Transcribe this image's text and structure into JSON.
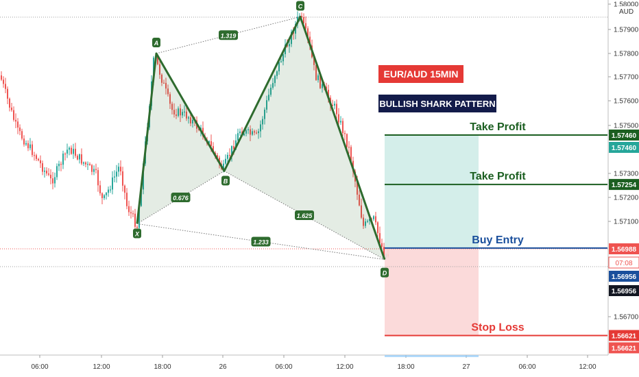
{
  "chart_data": {
    "type": "candlestick",
    "currency_label": "AUD",
    "symbol_label": "EUR/AUD   15MIN",
    "pattern_label": "BULLISH SHARK PATTERN",
    "y_ticks": [
      "1.58000",
      "1.57900",
      "1.57800",
      "1.57700",
      "1.57600",
      "1.57500",
      "1.57300",
      "1.57200",
      "1.57100",
      "1.56700"
    ],
    "y_tick_values": [
      1.58,
      1.579,
      1.578,
      1.577,
      1.576,
      1.575,
      1.573,
      1.572,
      1.571,
      1.567
    ],
    "x_ticks": [
      "06:00",
      "12:00",
      "18:00",
      "26",
      "06:00",
      "12:00",
      "18:00",
      "27",
      "06:00",
      "12:00"
    ],
    "pattern_points": [
      {
        "label": "X",
        "price": 1.5709
      },
      {
        "label": "A",
        "price": 1.578
      },
      {
        "label": "B",
        "price": 1.5731
      },
      {
        "label": "C",
        "price": 1.5795
      },
      {
        "label": "D",
        "price": 1.5694
      }
    ],
    "ratios": [
      {
        "label": "1.319",
        "between": "A-C"
      },
      {
        "label": "0.676",
        "between": "X-B"
      },
      {
        "label": "1.625",
        "between": "B-D"
      },
      {
        "label": "1.233",
        "between": "X-D"
      }
    ],
    "levels": [
      {
        "name": "Take Profit",
        "price": 1.5746,
        "price_label": "1.57460",
        "color": "#1b5e20",
        "badges": [
          "1.57460",
          "1.57460"
        ]
      },
      {
        "name": "Take Profit",
        "price": 1.57254,
        "price_label": "1.57254",
        "color": "#1b5e20",
        "badges": [
          "1.57254"
        ]
      },
      {
        "name": "Buy Entry",
        "price": 1.56988,
        "price_label": "1.56988",
        "color": "#1a4f9c",
        "badges": [
          "1.56988"
        ]
      },
      {
        "name": "Stop Loss",
        "price": 1.56621,
        "price_label": "1.56621",
        "color": "#e53935",
        "badges": [
          "1.56621",
          "1.56621"
        ]
      }
    ],
    "last_price_badges": [
      "07:08",
      "1.56956",
      "1.56956"
    ],
    "colors": {
      "bull": "#26a69a",
      "bear": "#ef5350",
      "pattern": "#2e6b2e",
      "profit_zone": "#cfece8",
      "loss_zone": "#fbd6d6"
    }
  }
}
